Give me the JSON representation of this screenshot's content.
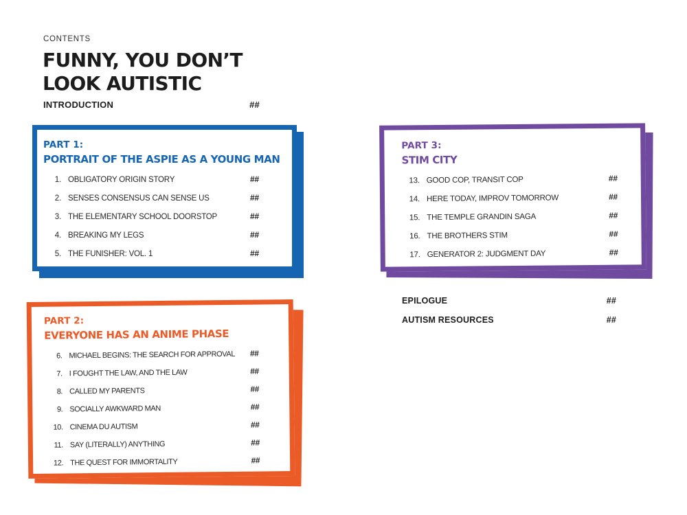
{
  "page": {
    "kicker": "CONTENTS",
    "title_line1": "FUNNY, YOU DON’T",
    "title_line2": "LOOK AUTISTIC",
    "intro": {
      "label": "INTRODUCTION",
      "page": "##"
    }
  },
  "colors": {
    "blue": "#1565B3",
    "orange": "#EB5B28",
    "purple": "#6F4A9E",
    "ink": "#1E1E1E"
  },
  "parts": [
    {
      "label": "PART 1:",
      "title": "PORTRAIT OF THE ASPIE AS A YOUNG MAN",
      "color": "#1565B3",
      "items": [
        {
          "num": "1.",
          "title": "OBLIGATORY ORIGIN STORY",
          "page": "##"
        },
        {
          "num": "2.",
          "title": "SENSES CONSENSUS CAN SENSE US",
          "page": "##"
        },
        {
          "num": "3.",
          "title": "THE ELEMENTARY SCHOOL DOORSTOP",
          "page": "##"
        },
        {
          "num": "4.",
          "title": "BREAKING MY LEGS",
          "page": "##"
        },
        {
          "num": "5.",
          "title": "THE FUNISHER: VOL. 1",
          "page": "##"
        }
      ]
    },
    {
      "label": "PART 2:",
      "title": "EVERYONE HAS AN ANIME PHASE",
      "color": "#EB5B28",
      "items": [
        {
          "num": "6.",
          "title": "MICHAEL BEGINS: THE SEARCH FOR APPROVAL",
          "page": "##"
        },
        {
          "num": "7.",
          "title": "I FOUGHT THE LAW, AND THE LAW",
          "page": "##"
        },
        {
          "num": "8.",
          "title": "CALLED MY PARENTS",
          "page": "##"
        },
        {
          "num": "9.",
          "title": "SOCIALLY AWKWARD MAN",
          "page": "##"
        },
        {
          "num": "10.",
          "title": "CINEMA DU AUTISM",
          "page": "##"
        },
        {
          "num": "11.",
          "title": "SAY (LITERALLY) ANYTHING",
          "page": "##"
        },
        {
          "num": "12.",
          "title": "THE QUEST FOR IMMORTALITY",
          "page": "##"
        }
      ]
    },
    {
      "label": "PART 3:",
      "title": "STIM CITY",
      "color": "#6F4A9E",
      "items": [
        {
          "num": "13.",
          "title": "GOOD COP, TRANSIT COP",
          "page": "##"
        },
        {
          "num": "14.",
          "title": "HERE TODAY, IMPROV TOMORROW",
          "page": "##"
        },
        {
          "num": "15.",
          "title": "THE TEMPLE GRANDIN SAGA",
          "page": "##"
        },
        {
          "num": "16.",
          "title": "THE BROTHERS STIM",
          "page": "##"
        },
        {
          "num": "17.",
          "title": "GENERATOR 2: JUDGMENT DAY",
          "page": "##"
        }
      ]
    }
  ],
  "footer": [
    {
      "label": "EPILOGUE",
      "page": "##"
    },
    {
      "label": "AUTISM RESOURCES",
      "page": "##"
    }
  ]
}
